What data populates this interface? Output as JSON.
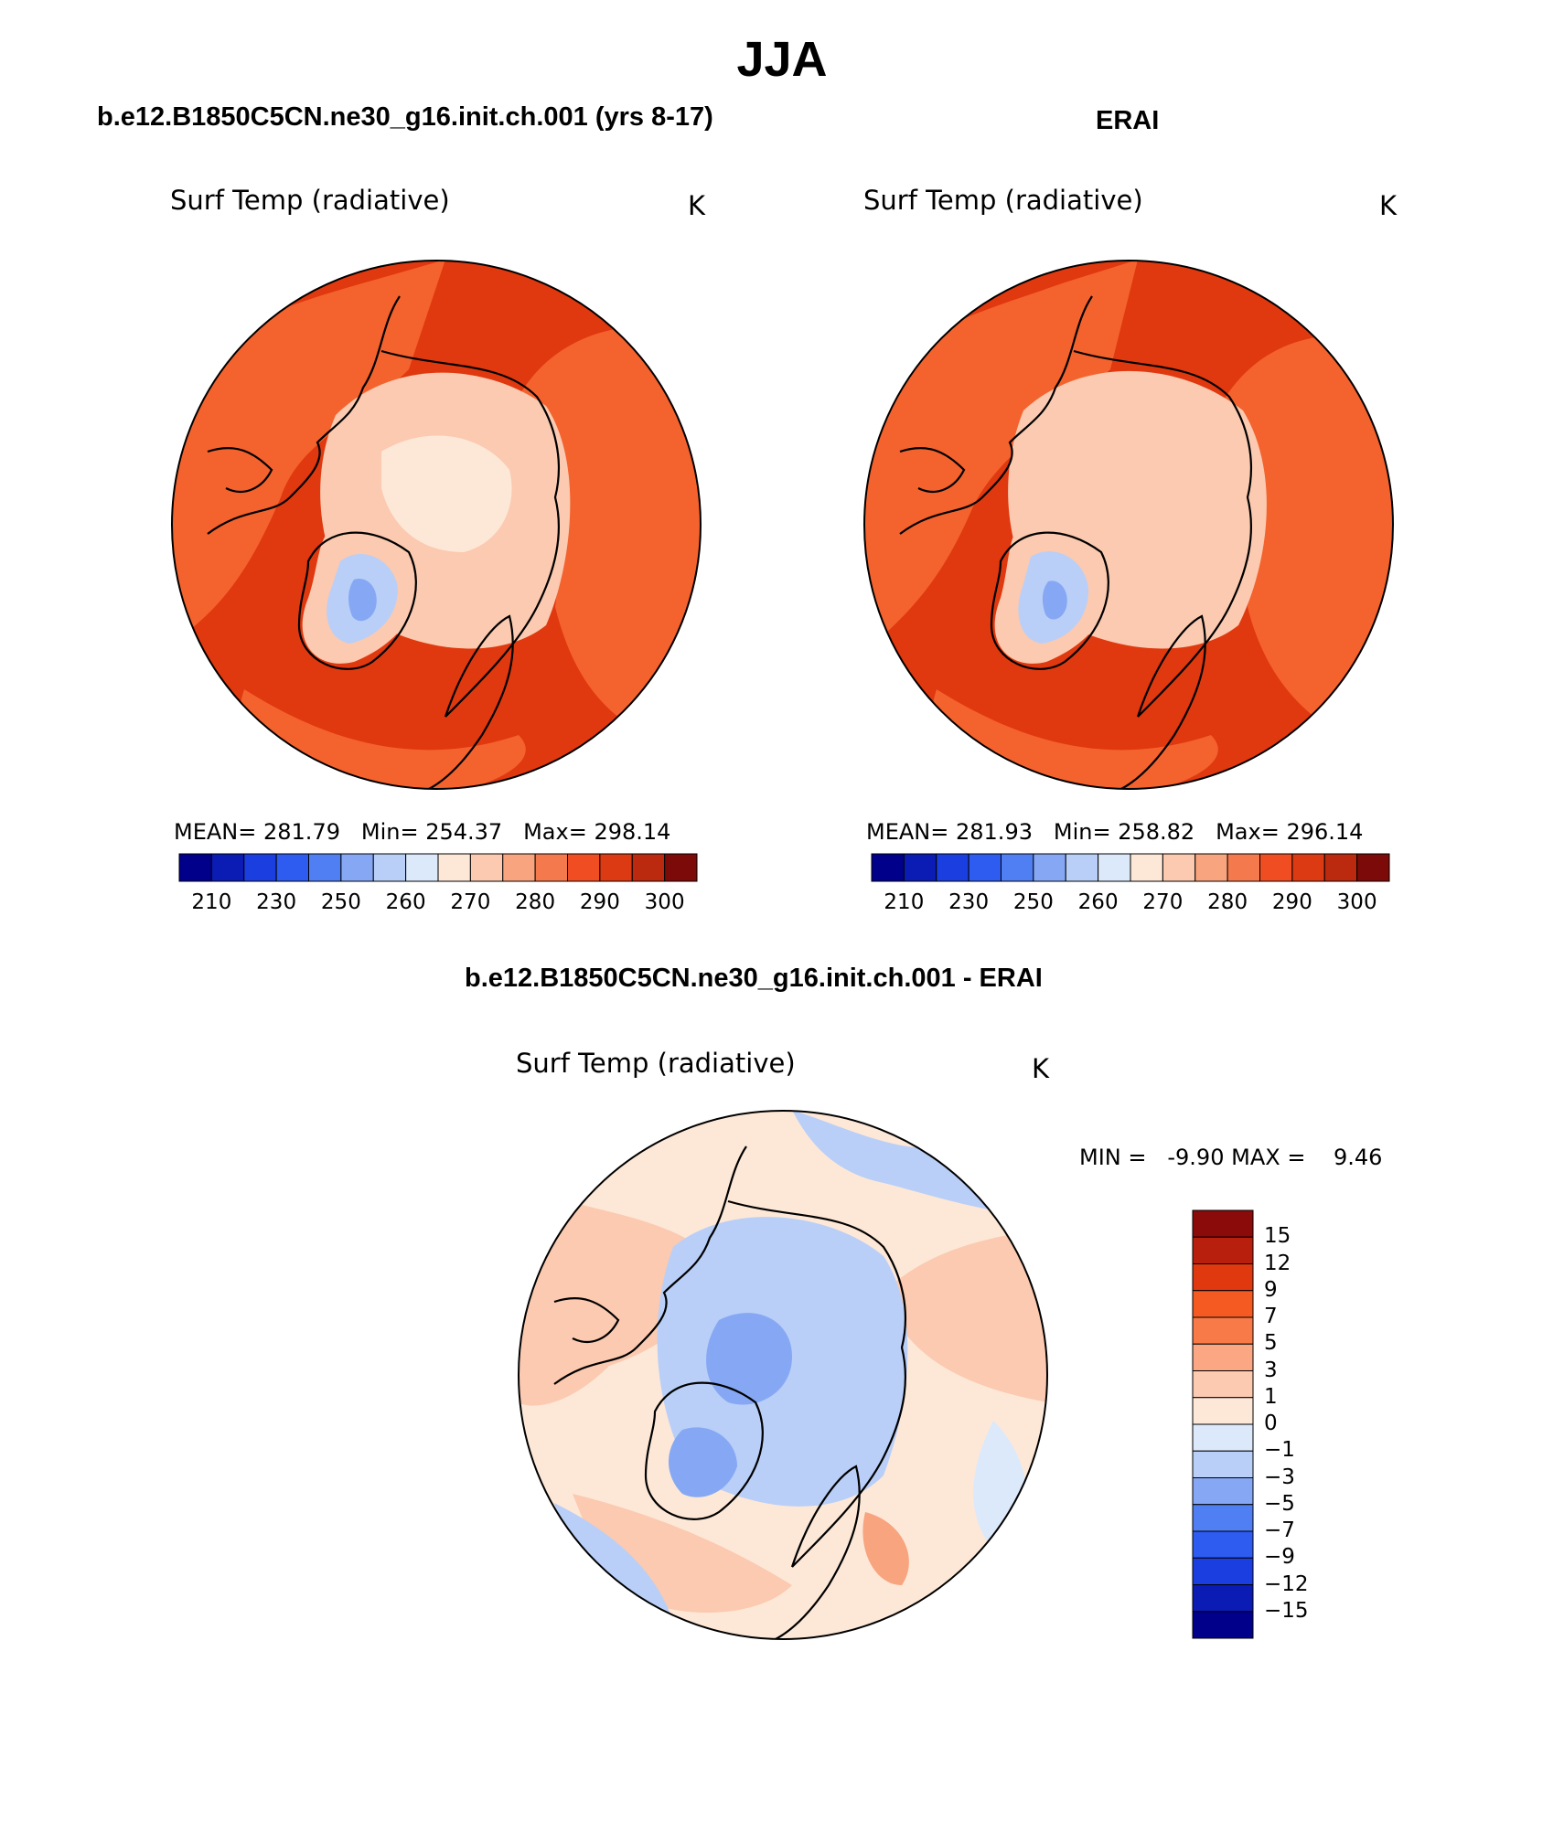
{
  "figure": {
    "season": "JJA",
    "diff_title": "b.e12.B1850C5CN.ne30_g16.init.ch.001 - ERAI"
  },
  "panels": [
    {
      "id": "model",
      "case_title": "b.e12.B1850C5CN.ne30_g16.init.ch.001 (yrs 8-17)",
      "variable": "Surf Temp (radiative)",
      "units": "K",
      "mean_label": "MEAN=",
      "mean": "281.79",
      "min_label": "Min=",
      "min": "254.37",
      "max_label": "Max=",
      "max": "298.14"
    },
    {
      "id": "obs",
      "case_title": "ERAI",
      "variable": "Surf Temp (radiative)",
      "units": "K",
      "mean_label": "MEAN=",
      "mean": "281.93",
      "min_label": "Min=",
      "min": "258.82",
      "max_label": "Max=",
      "max": "296.14"
    }
  ],
  "abs_colorbar": {
    "colors": [
      "#00008b",
      "#0a1cb4",
      "#1b3ee0",
      "#2e5bf0",
      "#4f7ff2",
      "#86a8f4",
      "#b9cff8",
      "#dbe9fb",
      "#fde8d8",
      "#fbcab0",
      "#f8a47e",
      "#f47a4e",
      "#f04e22",
      "#dc3a12",
      "#bb2a0e",
      "#7c0a08"
    ],
    "tick_labels": [
      "210",
      "230",
      "250",
      "260",
      "270",
      "280",
      "290",
      "300"
    ]
  },
  "diff_panel": {
    "variable": "Surf Temp (radiative)",
    "units": "K",
    "min_label": "MIN =",
    "min": "-9.90",
    "max_label": "MAX =",
    "max": "9.46",
    "colorbar": {
      "colors_top_to_bottom": [
        "#8b0a0a",
        "#b8200d",
        "#e0380f",
        "#f45a22",
        "#f87a48",
        "#fba784",
        "#fbcab0",
        "#fde8d8",
        "#dbe9fb",
        "#b9cff8",
        "#86a8f4",
        "#4f7ff2",
        "#2e5bf0",
        "#1b3ee0",
        "#0a1cb4",
        "#00008b"
      ],
      "tick_labels_top_to_bottom": [
        "15",
        "12",
        "9",
        "7",
        "5",
        "3",
        "1",
        "0",
        "−1",
        "−3",
        "−5",
        "−7",
        "−9",
        "−12",
        "−15"
      ]
    }
  },
  "colors": {
    "ocean_warm": "#e0380f",
    "land_warm": "#f4622e",
    "arctic_cool": "#fbcab0",
    "ice": "#fde8d8",
    "greenland_cold": "#b9cff8",
    "coast": "#000000"
  }
}
